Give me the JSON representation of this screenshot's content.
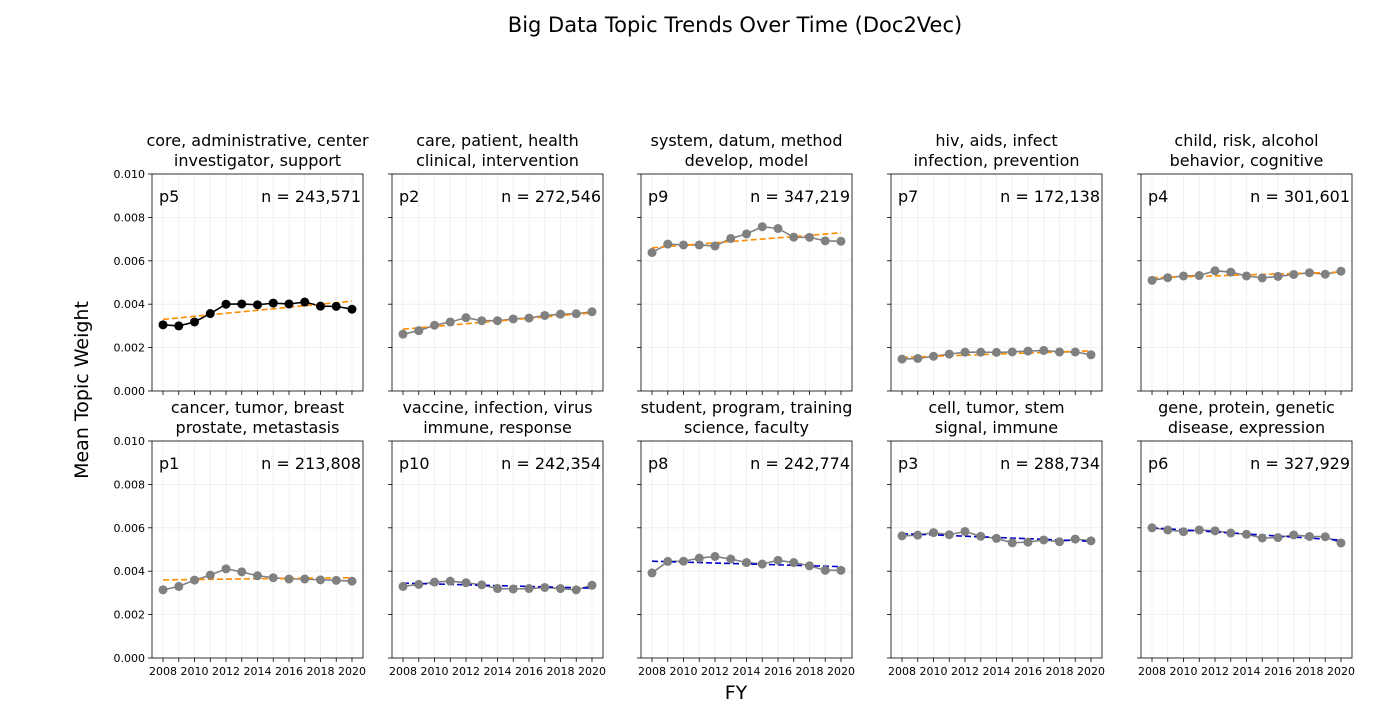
{
  "figure": {
    "title": "Big Data Topic Trends Over Time (Doc2Vec)",
    "ylabel": "Mean Topic Weight",
    "xlabel": "FY"
  },
  "chart_data": [
    {
      "type": "line",
      "panel": 1,
      "title_line1": "core, administrative, center",
      "title_line2": "investigator, support",
      "tag": "p5",
      "n_label": "n = 243,571",
      "marker_color": "#000000",
      "trend_color": "#ff8c00",
      "x": [
        2008,
        2009,
        2010,
        2011,
        2012,
        2013,
        2014,
        2015,
        2016,
        2017,
        2018,
        2019,
        2020
      ],
      "values": [
        0.00305,
        0.003,
        0.00318,
        0.00357,
        0.004,
        0.00401,
        0.00397,
        0.00405,
        0.00401,
        0.0041,
        0.00391,
        0.0039,
        0.00377
      ],
      "trend": [
        0.0033,
        0.00414
      ],
      "ylim": [
        0,
        0.01
      ],
      "yticks": [
        "0.010",
        "0.008",
        "0.006",
        "0.004",
        "0.002",
        "0.000"
      ],
      "xticks": [
        "2008",
        "2010",
        "2012",
        "2014",
        "2016",
        "2018",
        "2020"
      ]
    },
    {
      "type": "line",
      "panel": 2,
      "title_line1": "care, patient, health",
      "title_line2": "clinical, intervention",
      "tag": "p2",
      "n_label": "n = 272,546",
      "marker_color": "#808080",
      "trend_color": "#ff8c00",
      "x": [
        2008,
        2009,
        2010,
        2011,
        2012,
        2013,
        2014,
        2015,
        2016,
        2017,
        2018,
        2019,
        2020
      ],
      "values": [
        0.00262,
        0.00278,
        0.00303,
        0.00318,
        0.00338,
        0.00324,
        0.00324,
        0.00332,
        0.00336,
        0.00348,
        0.00354,
        0.00356,
        0.00365
      ],
      "trend": [
        0.00285,
        0.0036
      ],
      "ylim": [
        0,
        0.01
      ],
      "xticks": [
        "2008",
        "2010",
        "2012",
        "2014",
        "2016",
        "2018",
        "2020"
      ]
    },
    {
      "type": "line",
      "panel": 3,
      "title_line1": "system, datum, method",
      "title_line2": "develop, model",
      "tag": "p9",
      "n_label": "n = 347,219",
      "marker_color": "#808080",
      "trend_color": "#ff8c00",
      "x": [
        2008,
        2009,
        2010,
        2011,
        2012,
        2013,
        2014,
        2015,
        2016,
        2017,
        2018,
        2019,
        2020
      ],
      "values": [
        0.00638,
        0.00677,
        0.00673,
        0.00673,
        0.00668,
        0.00703,
        0.00724,
        0.00757,
        0.00749,
        0.00709,
        0.00708,
        0.00692,
        0.0069
      ],
      "trend": [
        0.0066,
        0.00729
      ],
      "ylim": [
        0,
        0.01
      ],
      "xticks": [
        "2008",
        "2010",
        "2012",
        "2014",
        "2016",
        "2018",
        "2020"
      ]
    },
    {
      "type": "line",
      "panel": 4,
      "title_line1": "hiv, aids, infect",
      "title_line2": "infection, prevention",
      "tag": "p7",
      "n_label": "n = 172,138",
      "marker_color": "#808080",
      "trend_color": "#ff8c00",
      "x": [
        2008,
        2009,
        2010,
        2011,
        2012,
        2013,
        2014,
        2015,
        2016,
        2017,
        2018,
        2019,
        2020
      ],
      "values": [
        0.00147,
        0.0015,
        0.0016,
        0.0017,
        0.00179,
        0.00179,
        0.00178,
        0.0018,
        0.00184,
        0.00187,
        0.0018,
        0.0018,
        0.00167
      ],
      "trend": [
        0.00155,
        0.00185
      ],
      "ylim": [
        0,
        0.01
      ],
      "xticks": [
        "2008",
        "2010",
        "2012",
        "2014",
        "2016",
        "2018",
        "2020"
      ]
    },
    {
      "type": "line",
      "panel": 5,
      "title_line1": "child, risk, alcohol",
      "title_line2": "behavior, cognitive",
      "tag": "p4",
      "n_label": "n = 301,601",
      "marker_color": "#808080",
      "trend_color": "#ff8c00",
      "x": [
        2008,
        2009,
        2010,
        2011,
        2012,
        2013,
        2014,
        2015,
        2016,
        2017,
        2018,
        2019,
        2020
      ],
      "values": [
        0.0051,
        0.00522,
        0.0053,
        0.00532,
        0.00554,
        0.00548,
        0.0053,
        0.00521,
        0.00528,
        0.00537,
        0.00545,
        0.00538,
        0.00552
      ],
      "trend": [
        0.00522,
        0.00548
      ],
      "ylim": [
        0,
        0.01
      ],
      "xticks": [
        "2008",
        "2010",
        "2012",
        "2014",
        "2016",
        "2018",
        "2020"
      ]
    },
    {
      "type": "line",
      "panel": 6,
      "title_line1": "cancer, tumor, breast",
      "title_line2": "prostate, metastasis",
      "tag": "p1",
      "n_label": "n = 213,808",
      "marker_color": "#808080",
      "trend_color": "#ff8c00",
      "x": [
        2008,
        2009,
        2010,
        2011,
        2012,
        2013,
        2014,
        2015,
        2016,
        2017,
        2018,
        2019,
        2020
      ],
      "values": [
        0.00314,
        0.0033,
        0.00359,
        0.00382,
        0.00411,
        0.00397,
        0.00379,
        0.0037,
        0.00364,
        0.00364,
        0.0036,
        0.00358,
        0.00354
      ],
      "trend": [
        0.0036,
        0.0037
      ],
      "ylim": [
        0,
        0.01
      ],
      "yticks": [
        "0.010",
        "0.008",
        "0.006",
        "0.004",
        "0.002",
        "0.000"
      ],
      "xticks": [
        "2008",
        "2010",
        "2012",
        "2014",
        "2016",
        "2018",
        "2020"
      ]
    },
    {
      "type": "line",
      "panel": 7,
      "title_line1": "vaccine, infection, virus",
      "title_line2": "immune, response",
      "tag": "p10",
      "n_label": "n = 242,354",
      "marker_color": "#808080",
      "trend_color": "#0000cd",
      "x": [
        2008,
        2009,
        2010,
        2011,
        2012,
        2013,
        2014,
        2015,
        2016,
        2017,
        2018,
        2019,
        2020
      ],
      "values": [
        0.0033,
        0.00339,
        0.0035,
        0.00354,
        0.00347,
        0.00337,
        0.0032,
        0.00318,
        0.0032,
        0.00325,
        0.0032,
        0.00314,
        0.00335
      ],
      "trend": [
        0.00345,
        0.00322
      ],
      "ylim": [
        0,
        0.01
      ],
      "xticks": [
        "2008",
        "2010",
        "2012",
        "2014",
        "2016",
        "2018",
        "2020"
      ]
    },
    {
      "type": "line",
      "panel": 8,
      "title_line1": "student, program, training",
      "title_line2": "science, faculty",
      "tag": "p8",
      "n_label": "n = 242,774",
      "marker_color": "#808080",
      "trend_color": "#0000cd",
      "x": [
        2008,
        2009,
        2010,
        2011,
        2012,
        2013,
        2014,
        2015,
        2016,
        2017,
        2018,
        2019,
        2020
      ],
      "values": [
        0.00392,
        0.00445,
        0.00446,
        0.0046,
        0.00468,
        0.00456,
        0.0044,
        0.00433,
        0.0045,
        0.0044,
        0.00425,
        0.00404,
        0.00404
      ],
      "trend": [
        0.00446,
        0.00421
      ],
      "ylim": [
        0,
        0.01
      ],
      "xticks": [
        "2008",
        "2010",
        "2012",
        "2014",
        "2016",
        "2018",
        "2020"
      ]
    },
    {
      "type": "line",
      "panel": 9,
      "title_line1": "cell, tumor, stem",
      "title_line2": "signal, immune",
      "tag": "p3",
      "n_label": "n = 288,734",
      "marker_color": "#808080",
      "trend_color": "#0000cd",
      "x": [
        2008,
        2009,
        2010,
        2011,
        2012,
        2013,
        2014,
        2015,
        2016,
        2017,
        2018,
        2019,
        2020
      ],
      "values": [
        0.00563,
        0.00566,
        0.00578,
        0.00568,
        0.00583,
        0.00561,
        0.00551,
        0.00531,
        0.00534,
        0.00544,
        0.00536,
        0.00548,
        0.0054
      ],
      "trend": [
        0.00573,
        0.00538
      ],
      "ylim": [
        0,
        0.01
      ],
      "xticks": [
        "2008",
        "2010",
        "2012",
        "2014",
        "2016",
        "2018",
        "2020"
      ]
    },
    {
      "type": "line",
      "panel": 10,
      "title_line1": "gene, protein, genetic",
      "title_line2": "disease, expression",
      "tag": "p6",
      "n_label": "n = 327,929",
      "marker_color": "#808080",
      "trend_color": "#0000cd",
      "x": [
        2008,
        2009,
        2010,
        2011,
        2012,
        2013,
        2014,
        2015,
        2016,
        2017,
        2018,
        2019,
        2020
      ],
      "values": [
        0.006,
        0.0059,
        0.00582,
        0.0059,
        0.00586,
        0.00576,
        0.0057,
        0.00553,
        0.00555,
        0.00567,
        0.0056,
        0.00559,
        0.0053
      ],
      "trend": [
        0.006,
        0.00543
      ],
      "ylim": [
        0,
        0.01
      ],
      "xticks": [
        "2008",
        "2010",
        "2012",
        "2014",
        "2016",
        "2018",
        "2020"
      ]
    }
  ]
}
